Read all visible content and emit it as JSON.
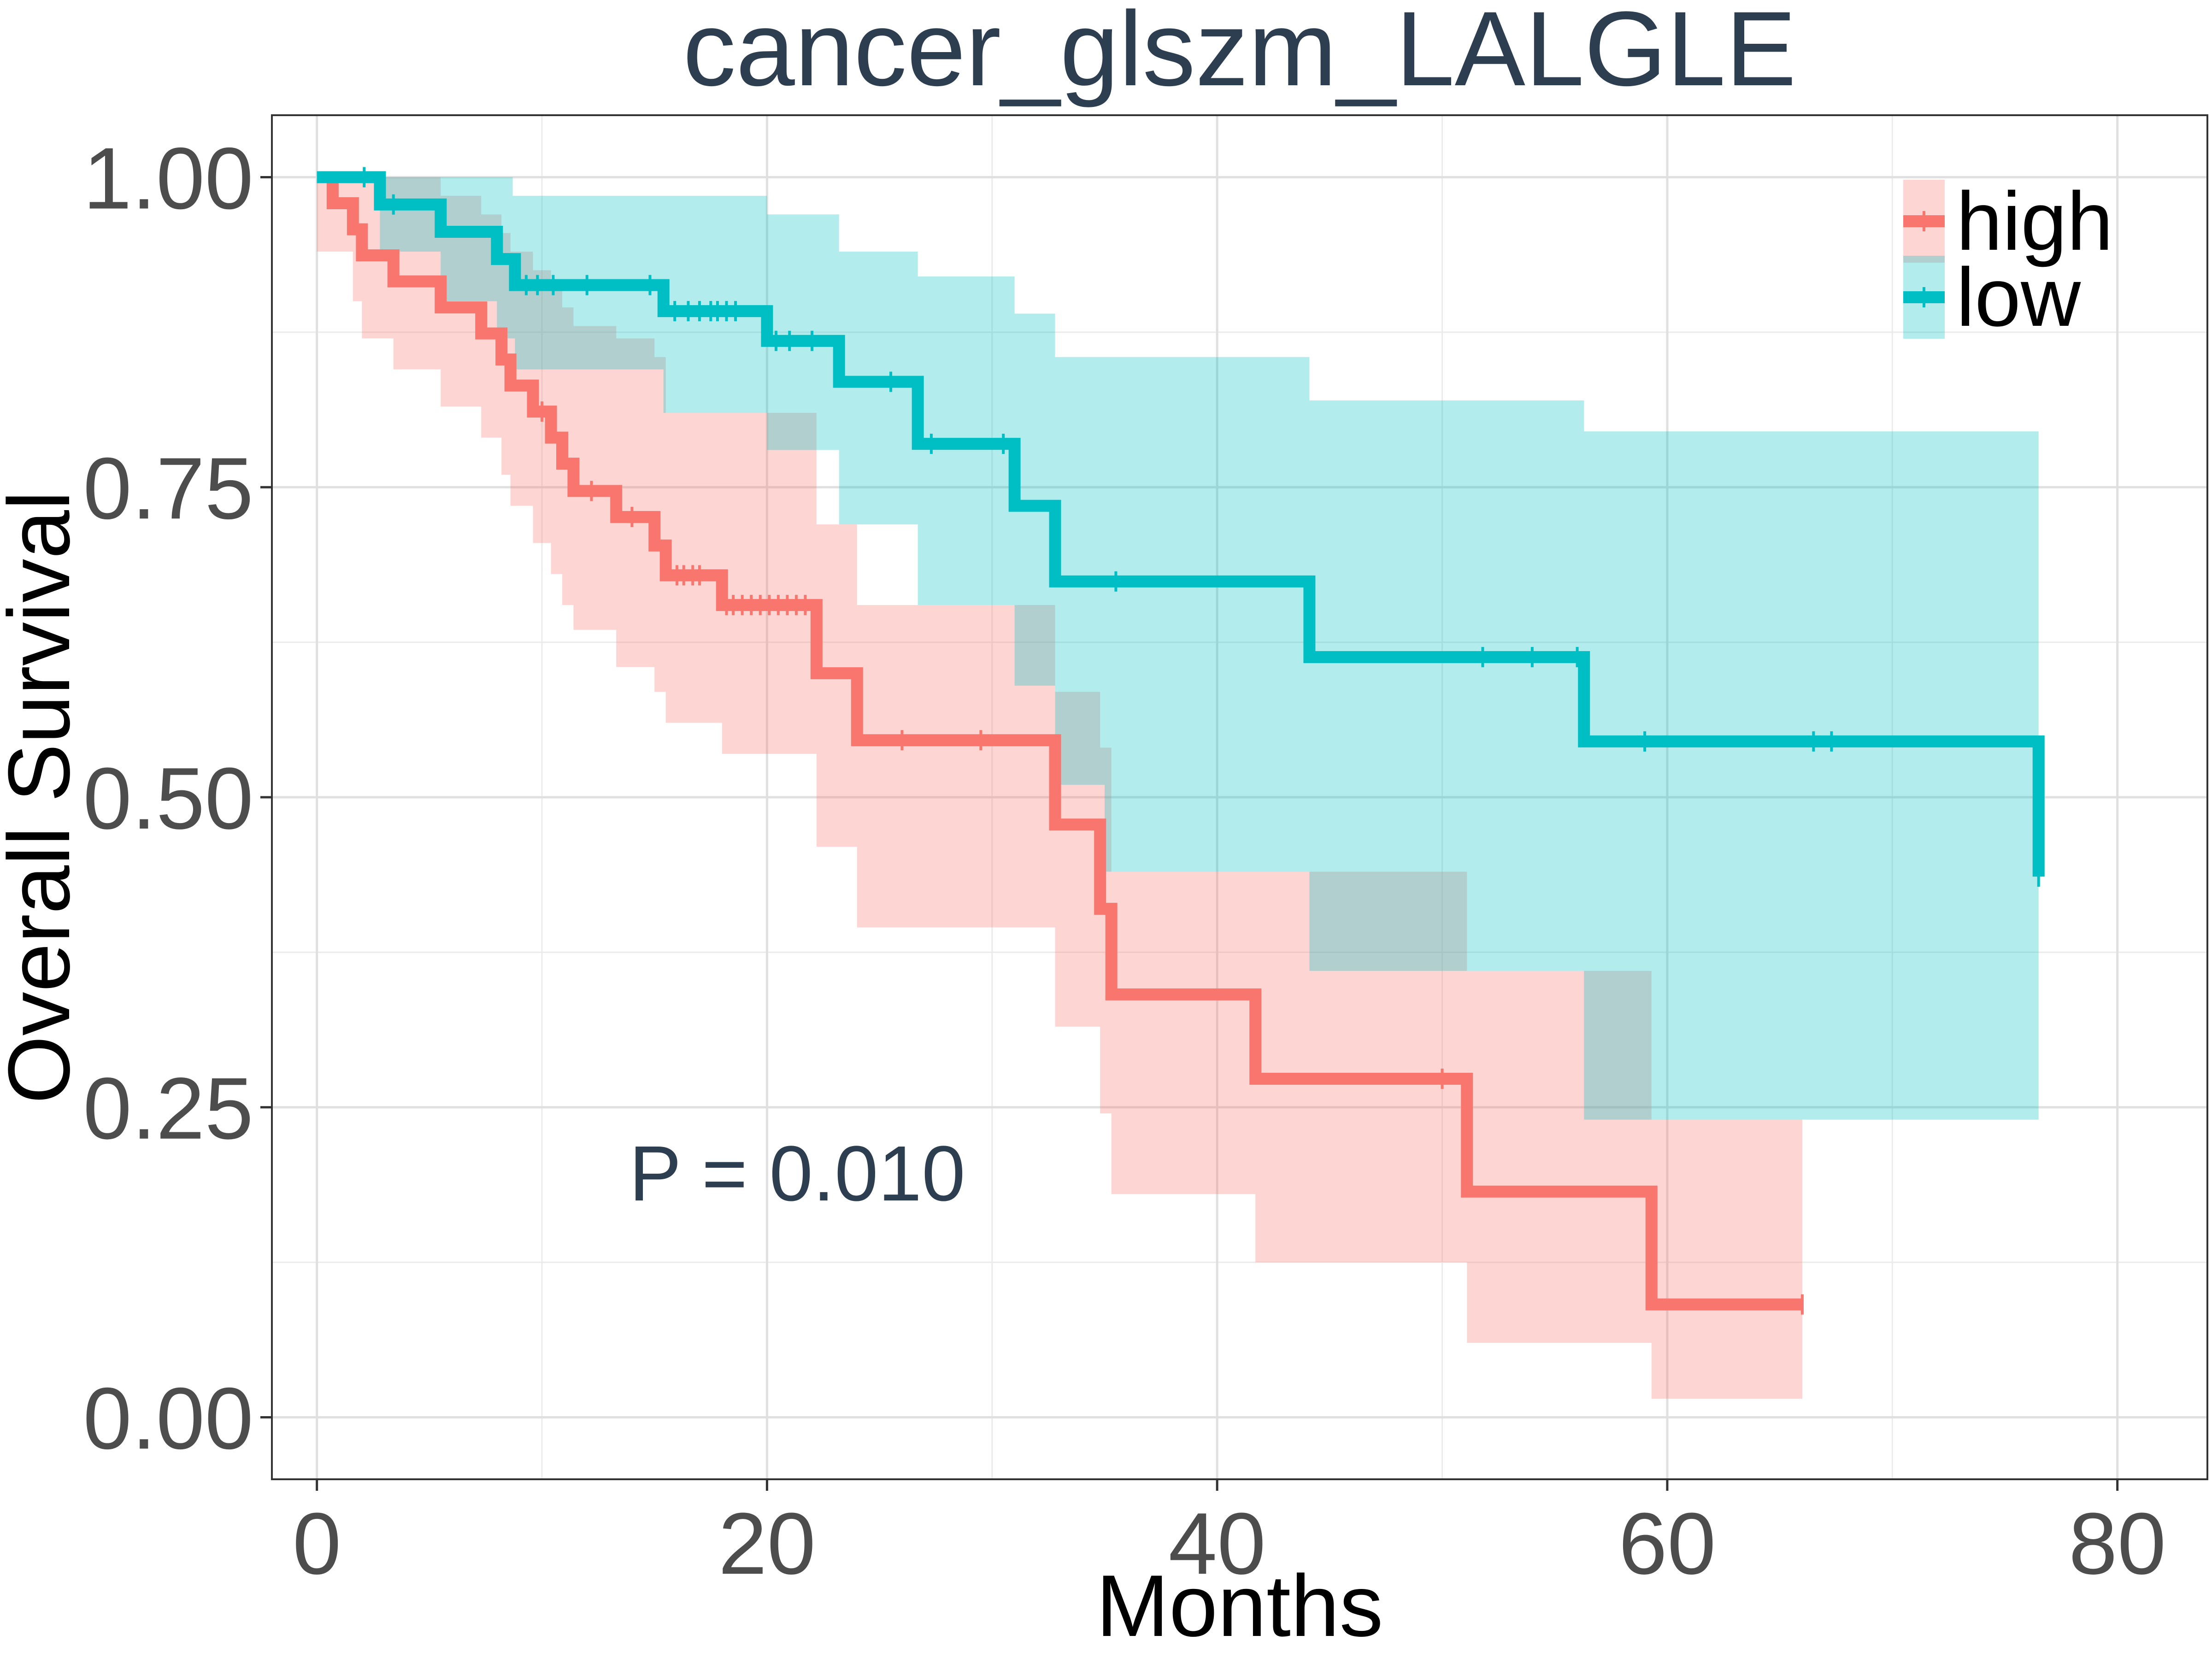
{
  "chart_data": {
    "type": "line",
    "title": "cancer_glszm_LALGLE",
    "xlabel": "Months",
    "ylabel": "Overall Survival",
    "xlim": [
      -2,
      84
    ],
    "ylim": [
      -0.05,
      1.05
    ],
    "x_ticks": [
      0,
      20,
      40,
      60,
      80
    ],
    "x_tick_labels": [
      "0",
      "20",
      "40",
      "60",
      "80"
    ],
    "y_ticks": [
      0,
      0.25,
      0.5,
      0.75,
      1.0
    ],
    "y_tick_labels": [
      "0.00",
      "0.25",
      "0.50",
      "0.75",
      "1.00"
    ],
    "grid": true,
    "legend_position": "top-right",
    "annotation": "P = 0.010",
    "series": [
      {
        "name": "high",
        "color": "#F8766D",
        "fill": "#F8766D",
        "steps": [
          [
            0,
            1.0
          ],
          [
            0.7,
            0.979
          ],
          [
            1.6,
            0.958
          ],
          [
            2.0,
            0.937
          ],
          [
            3.4,
            0.916
          ],
          [
            5.5,
            0.895
          ],
          [
            7.3,
            0.874
          ],
          [
            8.2,
            0.853
          ],
          [
            8.6,
            0.832
          ],
          [
            9.6,
            0.811
          ],
          [
            10.4,
            0.79
          ],
          [
            10.9,
            0.769
          ],
          [
            11.4,
            0.747
          ],
          [
            13.3,
            0.726
          ],
          [
            15.0,
            0.703
          ],
          [
            15.5,
            0.679
          ],
          [
            18.0,
            0.655
          ],
          [
            22.2,
            0.6
          ],
          [
            24.0,
            0.546
          ],
          [
            32.8,
            0.478
          ],
          [
            34.8,
            0.41
          ],
          [
            35.3,
            0.341
          ],
          [
            41.7,
            0.273
          ],
          [
            51.1,
            0.182
          ],
          [
            59.3,
            0.091
          ],
          [
            66.0,
            0.091
          ]
        ],
        "lower": [
          [
            0,
            0.94
          ],
          [
            0.7,
            0.94
          ],
          [
            1.6,
            0.9
          ],
          [
            2.0,
            0.87
          ],
          [
            3.4,
            0.845
          ],
          [
            5.5,
            0.815
          ],
          [
            7.3,
            0.79
          ],
          [
            8.2,
            0.76
          ],
          [
            8.6,
            0.735
          ],
          [
            9.6,
            0.705
          ],
          [
            10.4,
            0.68
          ],
          [
            10.9,
            0.655
          ],
          [
            11.4,
            0.635
          ],
          [
            13.3,
            0.605
          ],
          [
            15.0,
            0.585
          ],
          [
            15.5,
            0.56
          ],
          [
            18.0,
            0.535
          ],
          [
            22.2,
            0.46
          ],
          [
            24.0,
            0.395
          ],
          [
            32.8,
            0.315
          ],
          [
            34.8,
            0.245
          ],
          [
            35.3,
            0.18
          ],
          [
            41.7,
            0.125
          ],
          [
            51.1,
            0.06
          ],
          [
            59.3,
            0.015
          ],
          [
            66.0,
            0.015
          ]
        ],
        "upper": [
          [
            0,
            1.0
          ],
          [
            2.0,
            1.0
          ],
          [
            3.4,
            1.0
          ],
          [
            5.5,
            0.985
          ],
          [
            7.3,
            0.97
          ],
          [
            8.2,
            0.955
          ],
          [
            8.6,
            0.94
          ],
          [
            9.6,
            0.925
          ],
          [
            10.4,
            0.91
          ],
          [
            10.9,
            0.895
          ],
          [
            11.4,
            0.88
          ],
          [
            13.3,
            0.87
          ],
          [
            15.0,
            0.855
          ],
          [
            15.5,
            0.81
          ],
          [
            18.0,
            0.81
          ],
          [
            22.2,
            0.72
          ],
          [
            24.0,
            0.655
          ],
          [
            32.8,
            0.585
          ],
          [
            34.8,
            0.54
          ],
          [
            35.3,
            0.44
          ],
          [
            41.7,
            0.44
          ],
          [
            51.1,
            0.36
          ],
          [
            59.3,
            0.24
          ],
          [
            66.0,
            0.24
          ]
        ],
        "censor_x": [
          10.0,
          12.2,
          14.0,
          16.0,
          16.3,
          16.7,
          17.0,
          18.2,
          18.5,
          18.9,
          19.3,
          19.7,
          20.1,
          20.5,
          20.9,
          21.3,
          21.7,
          26.0,
          29.5,
          50.0,
          66.0
        ]
      },
      {
        "name": "low",
        "color": "#00BFC4",
        "fill": "#00BFC4",
        "steps": [
          [
            0,
            1.0
          ],
          [
            2.8,
            0.978
          ],
          [
            5.5,
            0.956
          ],
          [
            8.0,
            0.934
          ],
          [
            8.8,
            0.913
          ],
          [
            15.4,
            0.892
          ],
          [
            20.0,
            0.868
          ],
          [
            23.2,
            0.835
          ],
          [
            26.7,
            0.785
          ],
          [
            31.0,
            0.735
          ],
          [
            32.8,
            0.674
          ],
          [
            44.1,
            0.613
          ],
          [
            56.3,
            0.545
          ],
          [
            76.5,
            0.436
          ]
        ],
        "lower": [
          [
            0,
            1.0
          ],
          [
            2.8,
            0.94
          ],
          [
            5.5,
            0.9
          ],
          [
            8.0,
            0.87
          ],
          [
            8.8,
            0.845
          ],
          [
            15.4,
            0.81
          ],
          [
            20.0,
            0.78
          ],
          [
            23.2,
            0.72
          ],
          [
            26.7,
            0.655
          ],
          [
            31.0,
            0.59
          ],
          [
            32.8,
            0.51
          ],
          [
            35.0,
            0.44
          ],
          [
            44.1,
            0.36
          ],
          [
            56.3,
            0.24
          ],
          [
            76.5,
            0.24
          ]
        ],
        "upper": [
          [
            0,
            1.0
          ],
          [
            3.0,
            1.0
          ],
          [
            6.0,
            1.0
          ],
          [
            8.7,
            0.985
          ],
          [
            15.0,
            0.985
          ],
          [
            20.0,
            0.97
          ],
          [
            23.2,
            0.94
          ],
          [
            26.7,
            0.92
          ],
          [
            31.0,
            0.89
          ],
          [
            32.8,
            0.855
          ],
          [
            44.1,
            0.82
          ],
          [
            56.3,
            0.795
          ],
          [
            76.5,
            0.795
          ]
        ],
        "censor_x": [
          2.1,
          3.4,
          9.3,
          9.8,
          10.5,
          12.0,
          14.8,
          15.9,
          16.5,
          17.0,
          17.5,
          17.8,
          18.2,
          18.6,
          20.4,
          21.0,
          22.0,
          25.5,
          27.3,
          30.5,
          35.5,
          51.8,
          54.0,
          56.0,
          59.0,
          66.5,
          67.3,
          76.5
        ]
      }
    ]
  }
}
